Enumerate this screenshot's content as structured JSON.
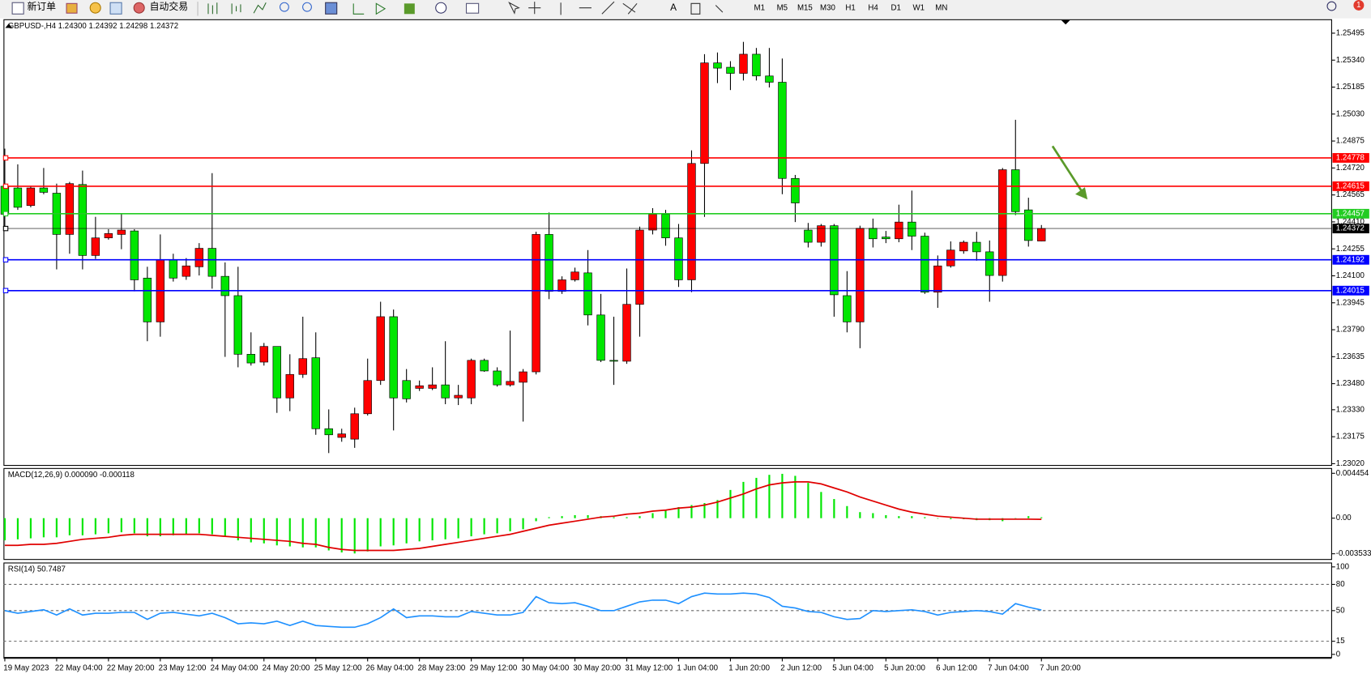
{
  "toolbar": {
    "new_order": "新订单",
    "auto_trading": "自动交易",
    "timeframes": [
      "M1",
      "M5",
      "M15",
      "M30",
      "H1",
      "H4",
      "D1",
      "W1",
      "MN"
    ],
    "badge": "1"
  },
  "chart_data": [
    {
      "type": "candlestick",
      "title": "GBPUSD-,H4  1.24300 1.24392 1.24298 1.24372",
      "categories": [
        "19 May 2023",
        null,
        null,
        null,
        "22 May 04:00",
        null,
        null,
        null,
        "22 May 20:00",
        null,
        null,
        null,
        "23 May 12:00",
        null,
        null,
        null,
        "24 May 04:00",
        null,
        null,
        null,
        "24 May 20:00",
        null,
        null,
        null,
        "25 May 12:00",
        null,
        null,
        null,
        "26 May 04:00",
        null,
        null,
        null,
        "28 May 23:00",
        null,
        null,
        null,
        "29 May 12:00",
        null,
        null,
        null,
        "30 May 04:00",
        null,
        null,
        null,
        "30 May 20:00",
        null,
        null,
        null,
        "31 May 12:00",
        null,
        null,
        null,
        "1 Jun 04:00",
        null,
        null,
        null,
        "1 Jun 20:00",
        null,
        null,
        null,
        "2 Jun 12:00",
        null,
        null,
        null,
        "5 Jun 04:00",
        null,
        null,
        null,
        "5 Jun 20:00",
        null,
        null,
        null,
        "6 Jun 12:00",
        null,
        null,
        null,
        "7 Jun 04:00",
        null,
        null,
        null,
        "7 Jun 20:00"
      ],
      "open": [
        1.24615,
        1.24605,
        1.24504,
        1.24605,
        1.24575,
        1.24338,
        1.24625,
        1.24217,
        1.24318,
        1.24338,
        1.24358,
        1.24087,
        1.23835,
        1.24192,
        1.24097,
        1.24152,
        1.24258,
        1.24097,
        1.23986,
        1.23649,
        1.23604,
        1.23694,
        1.23398,
        1.23533,
        1.23629,
        1.23221,
        1.23171,
        1.23161,
        1.23307,
        1.23498,
        1.23865,
        1.23498,
        1.23453,
        1.23453,
        1.23473,
        1.23398,
        1.23398,
        1.23614,
        1.23553,
        1.23473,
        1.23488,
        1.23548,
        1.24338,
        1.24011,
        1.24077,
        1.24117,
        1.23875,
        1.23614,
        1.23609,
        1.23936,
        1.24363,
        1.24454,
        1.24318,
        1.24077,
        1.24746,
        1.25324,
        1.25299,
        1.25264,
        1.25374,
        1.25249,
        1.25213,
        1.2466,
        1.24363,
        1.24293,
        1.24388,
        1.23986,
        1.23835,
        1.24373,
        1.24323,
        1.24313,
        1.24409,
        1.24328,
        1.24006,
        1.24157,
        1.24243,
        1.24293,
        1.24238,
        1.24102,
        1.2471,
        1.24479,
        1.243
      ],
      "high": [
        1.24831,
        1.24741,
        1.24615,
        1.2472,
        1.2463,
        1.2464,
        1.24705,
        1.24439,
        1.24368,
        1.24459,
        1.24368,
        1.24152,
        1.24338,
        1.24227,
        1.24202,
        1.24288,
        1.2469,
        1.24177,
        1.24152,
        1.23775,
        1.23714,
        1.23694,
        1.23649,
        1.23865,
        1.23775,
        1.23332,
        1.23221,
        1.23342,
        1.23624,
        1.23951,
        1.23906,
        1.23564,
        1.23498,
        1.23574,
        1.23724,
        1.23473,
        1.23624,
        1.23624,
        1.23574,
        1.23785,
        1.23564,
        1.24353,
        1.24464,
        1.24097,
        1.24147,
        1.24248,
        1.23996,
        1.23865,
        1.24142,
        1.24383,
        1.24489,
        1.24479,
        1.24398,
        1.24821,
        1.25374,
        1.25384,
        1.25334,
        1.25445,
        1.2541,
        1.2541,
        1.25349,
        1.2468,
        1.24404,
        1.24398,
        1.24398,
        1.24127,
        1.24388,
        1.24429,
        1.24358,
        1.24509,
        1.2459,
        1.24348,
        1.24217,
        1.24298,
        1.24303,
        1.24353,
        1.24303,
        1.2472,
        1.24997,
        1.24549,
        1.24392
      ],
      "low": [
        1.24378,
        1.24479,
        1.24494,
        1.24569,
        1.24137,
        1.24227,
        1.24137,
        1.24197,
        1.24308,
        1.24253,
        1.24011,
        1.23724,
        1.2375,
        1.24067,
        1.24077,
        1.24102,
        1.24026,
        1.23634,
        1.23574,
        1.23584,
        1.23584,
        1.23312,
        1.23322,
        1.23513,
        1.23186,
        1.23081,
        1.23146,
        1.23111,
        1.23297,
        1.23473,
        1.23211,
        1.23372,
        1.23438,
        1.23443,
        1.23362,
        1.23357,
        1.23362,
        1.23548,
        1.23463,
        1.23463,
        1.23262,
        1.23533,
        1.23966,
        1.23996,
        1.24067,
        1.23815,
        1.23604,
        1.23473,
        1.23594,
        1.2375,
        1.24338,
        1.24273,
        1.24036,
        1.24006,
        1.24439,
        1.25208,
        1.25168,
        1.25223,
        1.25223,
        1.25183,
        1.24569,
        1.24409,
        1.24263,
        1.24268,
        1.23865,
        1.23775,
        1.23684,
        1.24263,
        1.24288,
        1.24293,
        1.24248,
        1.23996,
        1.23916,
        1.24147,
        1.24227,
        1.24187,
        1.23951,
        1.24067,
        1.24449,
        1.24268,
        1.24298
      ],
      "close": [
        1.24454,
        1.24494,
        1.24605,
        1.2458,
        1.24338,
        1.2463,
        1.24217,
        1.24318,
        1.24343,
        1.24363,
        1.24077,
        1.23835,
        1.24192,
        1.24087,
        1.24157,
        1.24258,
        1.24097,
        1.23986,
        1.23649,
        1.23599,
        1.23694,
        1.23398,
        1.23533,
        1.23624,
        1.23221,
        1.23186,
        1.23191,
        1.23307,
        1.23498,
        1.23865,
        1.23398,
        1.23393,
        1.23468,
        1.23473,
        1.23398,
        1.23413,
        1.23614,
        1.23553,
        1.23473,
        1.23493,
        1.23548,
        1.24338,
        1.24011,
        1.24077,
        1.24122,
        1.23875,
        1.23614,
        1.23609,
        1.23936,
        1.24363,
        1.24454,
        1.24318,
        1.24077,
        1.24746,
        1.25324,
        1.25294,
        1.25264,
        1.25374,
        1.25249,
        1.25213,
        1.2466,
        1.24519,
        1.24293,
        1.24388,
        1.23991,
        1.23835,
        1.24373,
        1.24313,
        1.24313,
        1.24409,
        1.24328,
        1.24006,
        1.24157,
        1.24248,
        1.24293,
        1.24238,
        1.24102,
        1.2471,
        1.24469,
        1.24303,
        1.24372
      ],
      "up_color": "#ff0000",
      "down_color": "#00e600",
      "ylim": [
        1.2301,
        1.25565
      ],
      "yticks": [
        1.25495,
        {
          "value": 1.2534,
          "label": "1.25340"
        },
        1.25185,
        {
          "value": 1.2503,
          "label": "1.25030"
        },
        1.24875,
        {
          "value": 1.2472,
          "label": "1.24720"
        },
        1.24565,
        {
          "value": 1.2441,
          "label": "1.24410"
        },
        1.24255,
        {
          "value": 1.241,
          "label": "1.24100"
        },
        1.23945,
        {
          "value": 1.2379,
          "label": "1.23790"
        },
        1.23635,
        {
          "value": 1.2348,
          "label": "1.23480"
        },
        {
          "value": 1.2333,
          "label": "1.23330"
        },
        1.23175,
        {
          "value": 1.2302,
          "label": "1.23020"
        }
      ],
      "hlines": [
        {
          "value": 1.24778,
          "color": "#ff0000"
        },
        {
          "value": 1.24615,
          "color": "#ff0000"
        },
        {
          "value": 1.24457,
          "color": "#22cc22"
        },
        {
          "value": 1.24372,
          "color": "#000000"
        },
        {
          "value": 1.24192,
          "color": "#0000ff"
        },
        {
          "value": 1.24015,
          "color": "#0000ff"
        }
      ],
      "grid": false
    },
    {
      "type": "macd",
      "title": "MACD(12,26,9) 0.000090 -0.000118",
      "series": [
        {
          "kind": "bar",
          "color": "#00e600",
          "values": [
            -0.0022,
            -0.0021,
            -0.002,
            -0.0019,
            -0.0019,
            -0.0017,
            -0.0017,
            -0.0016,
            -0.0015,
            -0.0014,
            -0.0015,
            -0.0018,
            -0.0018,
            -0.0017,
            -0.0016,
            -0.0015,
            -0.0016,
            -0.0018,
            -0.0022,
            -0.0024,
            -0.0025,
            -0.0027,
            -0.0028,
            -0.0029,
            -0.0029,
            -0.0032,
            -0.0034,
            -0.0035,
            -0.0033,
            -0.0028,
            -0.0027,
            -0.0025,
            -0.0023,
            -0.0022,
            -0.0021,
            -0.002,
            -0.0018,
            -0.0016,
            -0.0015,
            -0.0013,
            -0.0011,
            -0.0003,
            0.0001,
            0.0002,
            0.0003,
            0.0003,
            0.0002,
            0.0001,
            0.0001,
            0.0002,
            0.0005,
            0.0008,
            0.0011,
            0.0013,
            0.0015,
            0.0018,
            0.0028,
            0.0036,
            0.004,
            0.0043,
            0.0044,
            0.0042,
            0.0035,
            0.0026,
            0.0019,
            0.0012,
            0.0006,
            0.0005,
            0.0003,
            0.0002,
            0.0002,
            0.0001,
            0,
            -0.0001,
            -0.0001,
            -0.0002,
            -0.0002,
            -0.0003,
            0,
            0.0002,
            9e-05
          ]
        },
        {
          "kind": "line",
          "color": "#e00000",
          "values": [
            -0.0027,
            -0.0027,
            -0.0026,
            -0.0026,
            -0.0025,
            -0.0023,
            -0.0021,
            -0.002,
            -0.0019,
            -0.0017,
            -0.0016,
            -0.0016,
            -0.0016,
            -0.0016,
            -0.0016,
            -0.0016,
            -0.0017,
            -0.0018,
            -0.0019,
            -0.002,
            -0.0021,
            -0.0022,
            -0.0023,
            -0.0025,
            -0.0026,
            -0.0029,
            -0.0031,
            -0.0032,
            -0.0032,
            -0.0032,
            -0.0032,
            -0.0031,
            -0.003,
            -0.0028,
            -0.0026,
            -0.0024,
            -0.0022,
            -0.002,
            -0.0018,
            -0.0016,
            -0.0013,
            -0.001,
            -0.0007,
            -0.0005,
            -0.0003,
            -0.0001,
            0.0001,
            0.0002,
            0.0004,
            0.0005,
            0.0007,
            0.0008,
            0.001,
            0.0011,
            0.0013,
            0.0016,
            0.002,
            0.0024,
            0.0029,
            0.0033,
            0.0035,
            0.0036,
            0.0036,
            0.0034,
            0.003,
            0.0026,
            0.0021,
            0.0017,
            0.0013,
            0.0009,
            0.0006,
            0.0004,
            0.0002,
            0.0001,
            0,
            -0.0001,
            -0.0001,
            -0.0001,
            -0.0001,
            -0.0001,
            -0.000118
          ]
        }
      ],
      "ylim": [
        -0.003533,
        0.004454
      ],
      "yticks": [
        0.004454,
        {
          "value": 0,
          "label": "0.00"
        },
        -0.003533
      ],
      "grid": false
    },
    {
      "type": "line",
      "title": "RSI(14) 50.7487",
      "color": "#1e90ff",
      "values": [
        50,
        47,
        49,
        51,
        45,
        52,
        45,
        47,
        47,
        48,
        48,
        40,
        47,
        48,
        46,
        44,
        47,
        42,
        35,
        36,
        35,
        38,
        33,
        38,
        33,
        32,
        31,
        31,
        35,
        42,
        52,
        42,
        44,
        44,
        43,
        43,
        49,
        47,
        45,
        45,
        48,
        66,
        59,
        58,
        59,
        55,
        50,
        50,
        55,
        60,
        62,
        62,
        58,
        66,
        70,
        69,
        69,
        70,
        69,
        65,
        55,
        53,
        49,
        48,
        43,
        40,
        41,
        50,
        49,
        50,
        51,
        49,
        45,
        48,
        49,
        50,
        49,
        46,
        58,
        54,
        50.7487
      ],
      "ylim": [
        0,
        100
      ],
      "yticks": [
        100,
        80,
        50,
        15,
        0
      ],
      "grid": "dashed"
    }
  ]
}
